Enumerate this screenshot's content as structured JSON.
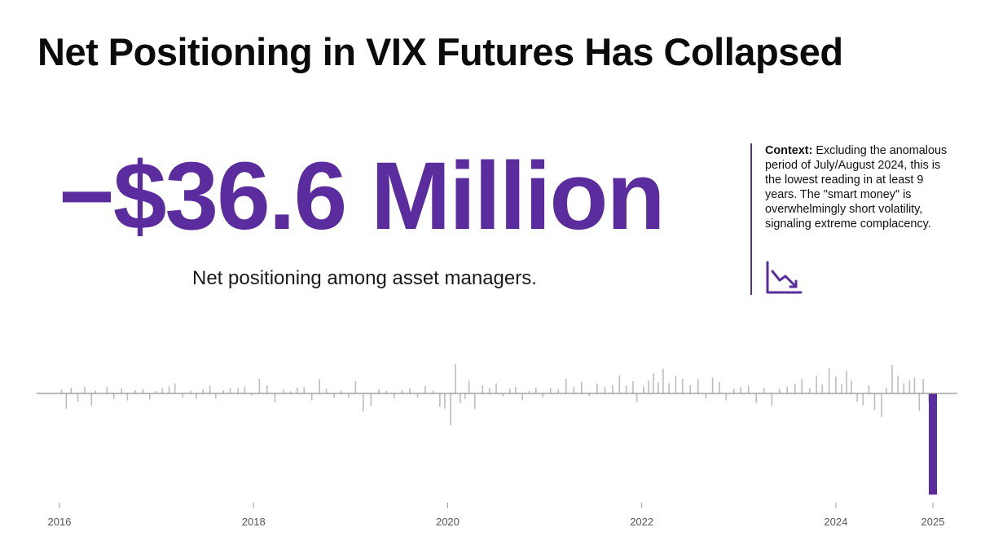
{
  "header": {
    "title": "Net Positioning in VIX Futures Has Collapsed"
  },
  "headline": {
    "value": "−$36.6 Million",
    "caption": "Net positioning among asset managers."
  },
  "context": {
    "label": "Context:",
    "text": " Excluding the anomalous period of July/August 2024, this is the lowest reading in at least 9 years. The \"smart money\" is overwhelmingly short volatility, signaling extreme complacency.",
    "icon": "trend-down-icon"
  },
  "colors": {
    "accent": "#5b2c9d",
    "bars": "#bdbdbd",
    "axis": "#8f8f8f"
  },
  "chart_data": {
    "type": "bar",
    "title": "",
    "xlabel": "",
    "ylabel": "",
    "x_ticks": [
      "2016",
      "2018",
      "2020",
      "2022",
      "2024",
      "2025"
    ],
    "x_tick_positions": [
      2016,
      2018,
      2020,
      2022,
      2024,
      2025
    ],
    "xlim": [
      2015.75,
      2025.2
    ],
    "ylim": [
      -38,
      11
    ],
    "grid": false,
    "legend": "none",
    "series": [
      {
        "x": [
          2016.02,
          2016.07,
          2016.12,
          2016.19,
          2016.26,
          2016.33,
          2016.37,
          2016.49,
          2016.56,
          2016.64,
          2016.7,
          2016.78,
          2016.86,
          2016.93,
          2017.0,
          2017.06,
          2017.13,
          2017.19,
          2017.27,
          2017.35,
          2017.41,
          2017.48,
          2017.55,
          2017.61,
          2017.69,
          2017.76,
          2017.84,
          2017.91,
          2017.98,
          2018.06,
          2018.14,
          2018.22,
          2018.31,
          2018.38,
          2018.45,
          2018.52,
          2018.6,
          2018.68,
          2018.75,
          2018.83,
          2018.9,
          2018.98,
          2019.05,
          2019.13,
          2019.21,
          2019.29,
          2019.37,
          2019.45,
          2019.53,
          2019.61,
          2019.69,
          2019.77,
          2019.85,
          2019.92,
          2019.97,
          2020.03,
          2020.08,
          2020.13,
          2020.18,
          2020.22,
          2020.28,
          2020.36,
          2020.43,
          2020.5,
          2020.57,
          2020.64,
          2020.7,
          2020.77,
          2020.84,
          2020.91,
          2020.98,
          2021.06,
          2021.14,
          2021.22,
          2021.3,
          2021.38,
          2021.46,
          2021.54,
          2021.62,
          2021.7,
          2021.77,
          2021.84,
          2021.91,
          2021.95,
          2022.02,
          2022.07,
          2022.12,
          2022.17,
          2022.22,
          2022.28,
          2022.35,
          2022.42,
          2022.5,
          2022.58,
          2022.66,
          2022.73,
          2022.8,
          2022.87,
          2022.95,
          2023.02,
          2023.1,
          2023.18,
          2023.26,
          2023.34,
          2023.42,
          2023.5,
          2023.58,
          2023.65,
          2023.73,
          2023.8,
          2023.86,
          2023.93,
          2024.0,
          2024.06,
          2024.11,
          2024.16,
          2024.22,
          2024.28,
          2024.34,
          2024.4,
          2024.47,
          2024.52,
          2024.58,
          2024.64,
          2024.7,
          2024.76,
          2024.81,
          2024.86,
          2024.9,
          2024.96
        ],
        "values": [
          1.2,
          -5.5,
          1.8,
          -3.0,
          2.1,
          -4.5,
          0.9,
          2.0,
          -2.0,
          1.5,
          -2.5,
          1.0,
          1.4,
          -2.2,
          0.8,
          1.6,
          2.2,
          3.2,
          -1.5,
          0.9,
          -2.0,
          1.3,
          2.5,
          -1.8,
          1.0,
          1.7,
          1.6,
          2.0,
          -0.8,
          4.6,
          2.6,
          -3.2,
          1.2,
          0.7,
          1.8,
          2.0,
          -2.5,
          4.5,
          1.5,
          -1.5,
          0.9,
          -1.6,
          3.8,
          -6.5,
          -4.5,
          1.4,
          0.8,
          -1.8,
          1.0,
          1.6,
          -1.5,
          2.3,
          0.9,
          -4.8,
          -5.5,
          -11.5,
          9.3,
          -3.5,
          -2.0,
          4.0,
          -5.5,
          2.5,
          1.7,
          3.2,
          -1.2,
          1.5,
          2.0,
          -2.5,
          0.8,
          1.8,
          -1.5,
          1.6,
          1.2,
          4.6,
          2.0,
          3.6,
          -1.0,
          3.1,
          2.0,
          2.6,
          5.7,
          2.5,
          3.9,
          -3.0,
          2.2,
          4.0,
          6.4,
          3.5,
          7.8,
          3.2,
          5.5,
          4.6,
          2.6,
          4.5,
          -1.8,
          5.0,
          3.6,
          -2.5,
          1.5,
          2.0,
          2.4,
          -3.5,
          1.7,
          -4.5,
          1.5,
          2.2,
          3.0,
          4.5,
          1.6,
          5.6,
          2.8,
          8.0,
          5.3,
          3.0,
          7.1,
          4.0,
          -3.0,
          -4.2,
          2.6,
          -6.0,
          -8.6,
          1.8,
          9.0,
          5.5,
          3.2,
          4.2,
          5.0,
          -6.3,
          4.5,
          -3.0
        ],
        "color": "#bdbdbd"
      },
      {
        "x": [
          2025.0
        ],
        "values": [
          -36.6
        ],
        "color": "#5b2c9d"
      }
    ]
  }
}
